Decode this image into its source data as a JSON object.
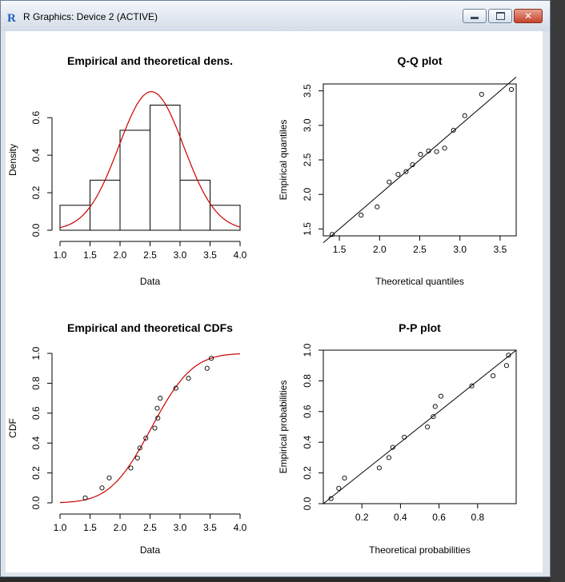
{
  "window": {
    "title": "R Graphics: Device 2 (ACTIVE)",
    "app_icon": "R",
    "controls": {
      "minimize": "minimize-icon",
      "maximize": "maximize-icon",
      "close": "close-icon"
    }
  },
  "chart_data": [
    {
      "type": "bar",
      "title": "Empirical and theoretical dens.",
      "xlabel": "Data",
      "ylabel": "Density",
      "xlim": [
        1.0,
        4.0
      ],
      "ylim": [
        0.0,
        0.75
      ],
      "xticks": [
        "1.0",
        "1.5",
        "2.0",
        "2.5",
        "3.0",
        "3.5",
        "4.0"
      ],
      "yticks": [
        "0.0",
        "0.2",
        "0.4",
        "0.6"
      ],
      "bins": [
        {
          "from": 1.0,
          "to": 1.5,
          "density": 0.133
        },
        {
          "from": 1.5,
          "to": 2.0,
          "density": 0.267
        },
        {
          "from": 2.0,
          "to": 2.5,
          "density": 0.533
        },
        {
          "from": 2.5,
          "to": 3.0,
          "density": 0.667
        },
        {
          "from": 3.0,
          "to": 3.5,
          "density": 0.267
        },
        {
          "from": 3.5,
          "to": 4.0,
          "density": 0.133
        }
      ],
      "curve": {
        "kind": "normal-density",
        "mean": 2.52,
        "sd": 0.54,
        "color": "#cc0000"
      }
    },
    {
      "type": "scatter",
      "title": "Q-Q plot",
      "xlabel": "Theoretical quantiles",
      "ylabel": "Empirical quantiles",
      "xlim": [
        1.3,
        3.7
      ],
      "ylim": [
        1.4,
        3.6
      ],
      "xticks": [
        "1.5",
        "2.0",
        "2.5",
        "3.0",
        "3.5"
      ],
      "yticks": [
        "1.5",
        "2.0",
        "2.5",
        "3.0",
        "3.5"
      ],
      "x": [
        1.41,
        1.77,
        1.97,
        2.12,
        2.23,
        2.33,
        2.41,
        2.51,
        2.61,
        2.71,
        2.81,
        2.92,
        3.06,
        3.27,
        3.64
      ],
      "y": [
        1.42,
        1.7,
        1.82,
        2.18,
        2.29,
        2.33,
        2.43,
        2.58,
        2.63,
        2.62,
        2.67,
        2.93,
        3.14,
        3.45,
        3.52
      ],
      "reference_line": [
        [
          1.3,
          1.3
        ],
        [
          3.7,
          3.7
        ]
      ]
    },
    {
      "type": "line",
      "title": "Empirical and theoretical CDFs",
      "xlabel": "Data",
      "ylabel": "CDF",
      "xlim": [
        1.0,
        4.0
      ],
      "ylim": [
        0.0,
        1.0
      ],
      "xticks": [
        "1.0",
        "1.5",
        "2.0",
        "2.5",
        "3.0",
        "3.5",
        "4.0"
      ],
      "yticks": [
        "0.0",
        "0.2",
        "0.4",
        "0.6",
        "0.8",
        "1.0"
      ],
      "points": {
        "x": [
          1.42,
          1.7,
          1.82,
          2.18,
          2.29,
          2.33,
          2.43,
          2.58,
          2.63,
          2.62,
          2.67,
          2.93,
          3.14,
          3.45,
          3.52
        ],
        "y": [
          0.033,
          0.1,
          0.167,
          0.233,
          0.3,
          0.367,
          0.433,
          0.5,
          0.567,
          0.633,
          0.7,
          0.767,
          0.833,
          0.9,
          0.967
        ]
      },
      "curve": {
        "kind": "normal-cdf",
        "mean": 2.52,
        "sd": 0.54,
        "color": "#cc0000"
      }
    },
    {
      "type": "scatter",
      "title": "P-P plot",
      "xlabel": "Theoretical probabilities",
      "ylabel": "Empirical probabilities",
      "xlim": [
        0.0,
        1.0
      ],
      "ylim": [
        0.0,
        1.0
      ],
      "xticks": [
        "0.2",
        "0.4",
        "0.6",
        "0.8"
      ],
      "yticks": [
        "0.0",
        "0.2",
        "0.4",
        "0.6",
        "0.8",
        "1.0"
      ],
      "x": [
        0.04,
        0.08,
        0.11,
        0.29,
        0.34,
        0.36,
        0.42,
        0.54,
        0.57,
        0.58,
        0.61,
        0.77,
        0.88,
        0.95,
        0.96
      ],
      "y": [
        0.033,
        0.1,
        0.167,
        0.233,
        0.3,
        0.367,
        0.433,
        0.5,
        0.567,
        0.633,
        0.7,
        0.767,
        0.833,
        0.9,
        0.967
      ],
      "reference_line": [
        [
          0.0,
          0.0
        ],
        [
          1.0,
          1.0
        ]
      ]
    }
  ]
}
